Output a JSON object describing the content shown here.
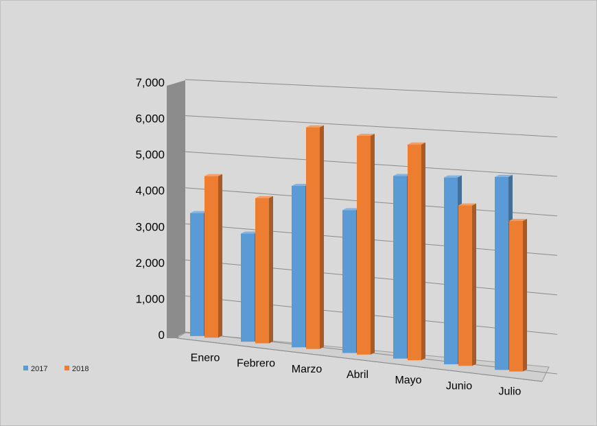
{
  "chart_data": {
    "type": "bar",
    "categories": [
      "Enero",
      "Febrero",
      "Marzo",
      "Abril",
      "Mayo",
      "Junio",
      "Julio"
    ],
    "series": [
      {
        "name": "2017",
        "values": [
          3400,
          2950,
          4350,
          3800,
          4800,
          4850,
          4950
        ],
        "color": "#5b9bd5"
      },
      {
        "name": "2018",
        "values": [
          4450,
          3950,
          5950,
          5800,
          5650,
          4150,
          3850
        ],
        "color": "#ed7d31"
      }
    ],
    "y_ticks": [
      "0",
      "1,000",
      "2,000",
      "3,000",
      "4,000",
      "5,000",
      "6,000",
      "7,000"
    ],
    "ylim": [
      0,
      7000
    ],
    "grid": true,
    "legend_position": "bottom-left",
    "style": "3d-perspective-column"
  }
}
